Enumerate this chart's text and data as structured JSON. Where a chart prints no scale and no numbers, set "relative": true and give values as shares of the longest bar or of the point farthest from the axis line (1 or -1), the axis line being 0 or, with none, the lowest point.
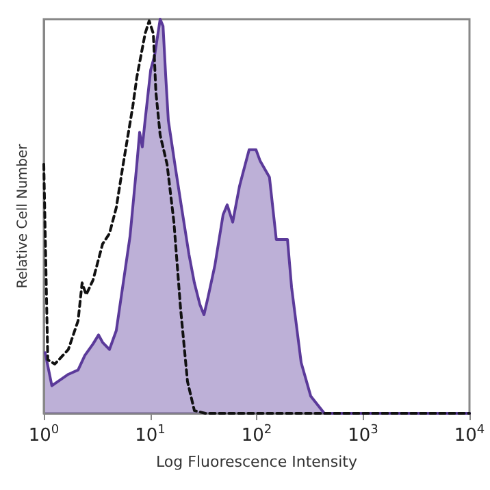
{
  "chart_data": {
    "type": "area",
    "xlabel": "Log Fluorescence Intensity",
    "ylabel": "Relative Cell Number",
    "relative": true,
    "log": "x",
    "xlim": [
      1,
      10000
    ],
    "xticks": [
      {
        "value": 1,
        "label": "10$^{0}$"
      },
      {
        "value": 10,
        "label": "10$^{1}$"
      },
      {
        "value": 100,
        "label": "10$^{2}$"
      },
      {
        "value": 1000,
        "label": "10$^{3}$"
      },
      {
        "value": 10000,
        "label": "10$^{4}$"
      }
    ],
    "series": [
      {
        "color": "#5b3a9a",
        "x": [
          1.03,
          1.19,
          1.7,
          2.1,
          2.43,
          2.9,
          3.27,
          3.57,
          4.14,
          4.8,
          6.46,
          7.49,
          7.95,
          8.43,
          8.95,
          10.1,
          11.0,
          12.4,
          13.2,
          14.0,
          14.8,
          17.2,
          19.9,
          23.1,
          26.0,
          29.3,
          32.0,
          34.9,
          40.5,
          48.4,
          52.9,
          59.6,
          69.1,
          85.0,
          98.6,
          108,
          132,
          153,
          195,
          213,
          262,
          322,
          433,
          10000
        ],
        "values": [
          0.154,
          0.07,
          0.099,
          0.11,
          0.147,
          0.176,
          0.199,
          0.18,
          0.162,
          0.21,
          0.449,
          0.632,
          0.713,
          0.676,
          0.743,
          0.871,
          0.908,
          1.0,
          0.982,
          0.853,
          0.743,
          0.625,
          0.515,
          0.404,
          0.331,
          0.276,
          0.25,
          0.294,
          0.375,
          0.504,
          0.529,
          0.485,
          0.577,
          0.669,
          0.669,
          0.64,
          0.599,
          0.441,
          0.441,
          0.32,
          0.129,
          0.044,
          0,
          0
        ]
      },
      {
        "type": "line",
        "color": "#111111",
        "line_style": "dashed",
        "x": [
          1,
          1.09,
          1.27,
          1.7,
          2.1,
          2.29,
          2.5,
          2.9,
          3.57,
          4.14,
          4.8,
          5.57,
          6.86,
          7.49,
          8.19,
          8.95,
          9.78,
          10.7,
          11.3,
          12.4,
          14.4,
          16.7,
          19.3,
          22.4,
          26.0,
          33.0,
          10000
        ],
        "values": [
          0.632,
          0.136,
          0.125,
          0.162,
          0.235,
          0.331,
          0.301,
          0.338,
          0.43,
          0.456,
          0.522,
          0.632,
          0.779,
          0.853,
          0.908,
          0.963,
          0.996,
          0.963,
          0.816,
          0.706,
          0.632,
          0.485,
          0.265,
          0.081,
          0.007,
          0,
          0
        ]
      }
    ]
  }
}
